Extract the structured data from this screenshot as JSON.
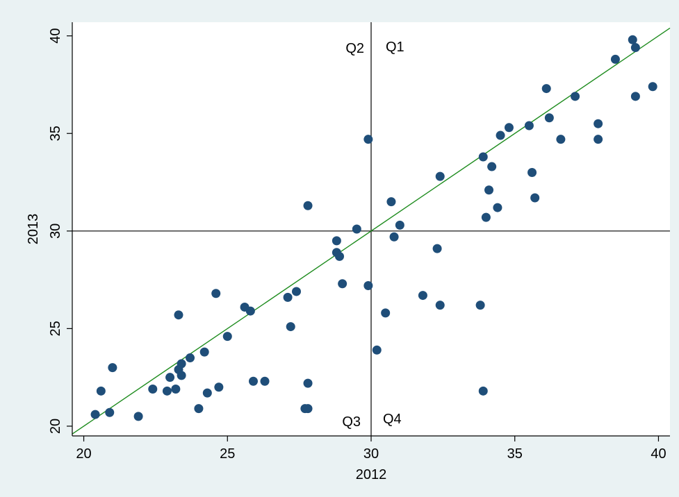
{
  "chart_data": {
    "type": "scatter",
    "title": "",
    "xlabel": "2012",
    "ylabel": "2013",
    "xlim": [
      19.6,
      40.4
    ],
    "ylim": [
      19.5,
      40.7
    ],
    "xticks": [
      20,
      25,
      30,
      35,
      40
    ],
    "yticks": [
      20,
      25,
      30,
      35,
      40
    ],
    "grid": false,
    "reference_lines": {
      "vertical_x": 30,
      "horizontal_y": 30
    },
    "fit_line": {
      "slope": 1,
      "intercept": 0,
      "color": "#1e8c1e"
    },
    "quadrant_labels": {
      "q1": "Q1",
      "q2": "Q2",
      "q3": "Q3",
      "q4": "Q4"
    },
    "marker_color": "#1f4e79",
    "points": [
      [
        20.4,
        20.6
      ],
      [
        20.6,
        21.8
      ],
      [
        20.9,
        20.7
      ],
      [
        21.0,
        23.0
      ],
      [
        21.9,
        20.5
      ],
      [
        22.4,
        21.9
      ],
      [
        22.9,
        21.8
      ],
      [
        23.0,
        22.5
      ],
      [
        23.2,
        21.9
      ],
      [
        23.3,
        22.9
      ],
      [
        23.4,
        23.2
      ],
      [
        23.4,
        22.6
      ],
      [
        23.3,
        25.7
      ],
      [
        23.7,
        23.5
      ],
      [
        24.0,
        20.9
      ],
      [
        24.2,
        23.8
      ],
      [
        24.3,
        21.7
      ],
      [
        24.6,
        26.8
      ],
      [
        24.7,
        22.0
      ],
      [
        25.0,
        24.6
      ],
      [
        25.6,
        26.1
      ],
      [
        25.8,
        25.9
      ],
      [
        25.9,
        22.3
      ],
      [
        26.3,
        22.3
      ],
      [
        27.1,
        26.6
      ],
      [
        27.2,
        25.1
      ],
      [
        27.4,
        26.9
      ],
      [
        27.7,
        20.9
      ],
      [
        27.8,
        20.9
      ],
      [
        27.8,
        22.2
      ],
      [
        27.8,
        31.3
      ],
      [
        28.8,
        29.5
      ],
      [
        28.8,
        28.9
      ],
      [
        28.9,
        28.7
      ],
      [
        29.0,
        27.3
      ],
      [
        29.5,
        30.1
      ],
      [
        29.9,
        27.2
      ],
      [
        29.9,
        34.7
      ],
      [
        30.2,
        23.9
      ],
      [
        30.5,
        25.8
      ],
      [
        30.7,
        31.5
      ],
      [
        30.8,
        29.7
      ],
      [
        31.0,
        30.3
      ],
      [
        31.8,
        26.7
      ],
      [
        32.3,
        29.1
      ],
      [
        32.4,
        32.8
      ],
      [
        32.4,
        26.2
      ],
      [
        33.8,
        26.2
      ],
      [
        33.9,
        33.8
      ],
      [
        34.0,
        30.7
      ],
      [
        33.9,
        21.8
      ],
      [
        34.1,
        32.1
      ],
      [
        34.2,
        33.3
      ],
      [
        34.4,
        31.2
      ],
      [
        34.5,
        34.9
      ],
      [
        34.8,
        35.3
      ],
      [
        35.5,
        35.4
      ],
      [
        35.6,
        33.0
      ],
      [
        35.7,
        31.7
      ],
      [
        36.1,
        37.3
      ],
      [
        36.2,
        35.8
      ],
      [
        36.6,
        34.7
      ],
      [
        37.1,
        36.9
      ],
      [
        37.9,
        35.5
      ],
      [
        37.9,
        34.7
      ],
      [
        38.5,
        38.8
      ],
      [
        39.1,
        39.8
      ],
      [
        39.2,
        39.4
      ],
      [
        39.2,
        36.9
      ],
      [
        39.8,
        37.4
      ]
    ]
  }
}
